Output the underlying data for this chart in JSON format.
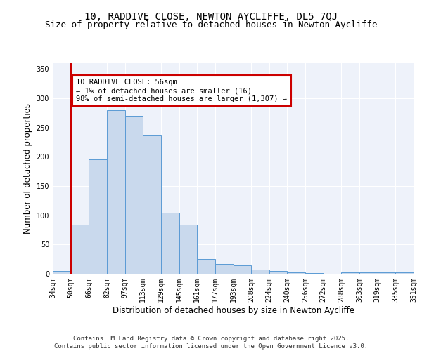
{
  "title1": "10, RADDIVE CLOSE, NEWTON AYCLIFFE, DL5 7QJ",
  "title2": "Size of property relative to detached houses in Newton Aycliffe",
  "xlabel": "Distribution of detached houses by size in Newton Aycliffe",
  "ylabel": "Number of detached properties",
  "all_labels": [
    "34sqm",
    "50sqm",
    "66sqm",
    "82sqm",
    "97sqm",
    "113sqm",
    "129sqm",
    "145sqm",
    "161sqm",
    "177sqm",
    "193sqm",
    "208sqm",
    "224sqm",
    "240sqm",
    "256sqm",
    "272sqm",
    "288sqm",
    "303sqm",
    "319sqm",
    "335sqm",
    "351sqm"
  ],
  "bar_values": [
    5,
    84,
    196,
    280,
    270,
    237,
    104,
    84,
    25,
    17,
    15,
    7,
    5,
    3,
    1,
    0,
    3,
    3,
    3,
    3
  ],
  "bar_color": "#c9d9ed",
  "bar_edge_color": "#5b9bd5",
  "red_line_x": 1,
  "annotation_text": "10 RADDIVE CLOSE: 56sqm\n← 1% of detached houses are smaller (16)\n98% of semi-detached houses are larger (1,307) →",
  "annotation_box_color": "#ffffff",
  "annotation_box_edge": "#cc0000",
  "red_line_color": "#cc0000",
  "ylim": [
    0,
    360
  ],
  "yticks": [
    0,
    50,
    100,
    150,
    200,
    250,
    300,
    350
  ],
  "footer1": "Contains HM Land Registry data © Crown copyright and database right 2025.",
  "footer2": "Contains public sector information licensed under the Open Government Licence v3.0.",
  "bg_color": "#eef2fa",
  "grid_color": "#ffffff",
  "title1_fontsize": 10,
  "title2_fontsize": 9,
  "xlabel_fontsize": 8.5,
  "ylabel_fontsize": 8.5,
  "tick_fontsize": 7,
  "footer_fontsize": 6.5,
  "annot_fontsize": 7.5
}
